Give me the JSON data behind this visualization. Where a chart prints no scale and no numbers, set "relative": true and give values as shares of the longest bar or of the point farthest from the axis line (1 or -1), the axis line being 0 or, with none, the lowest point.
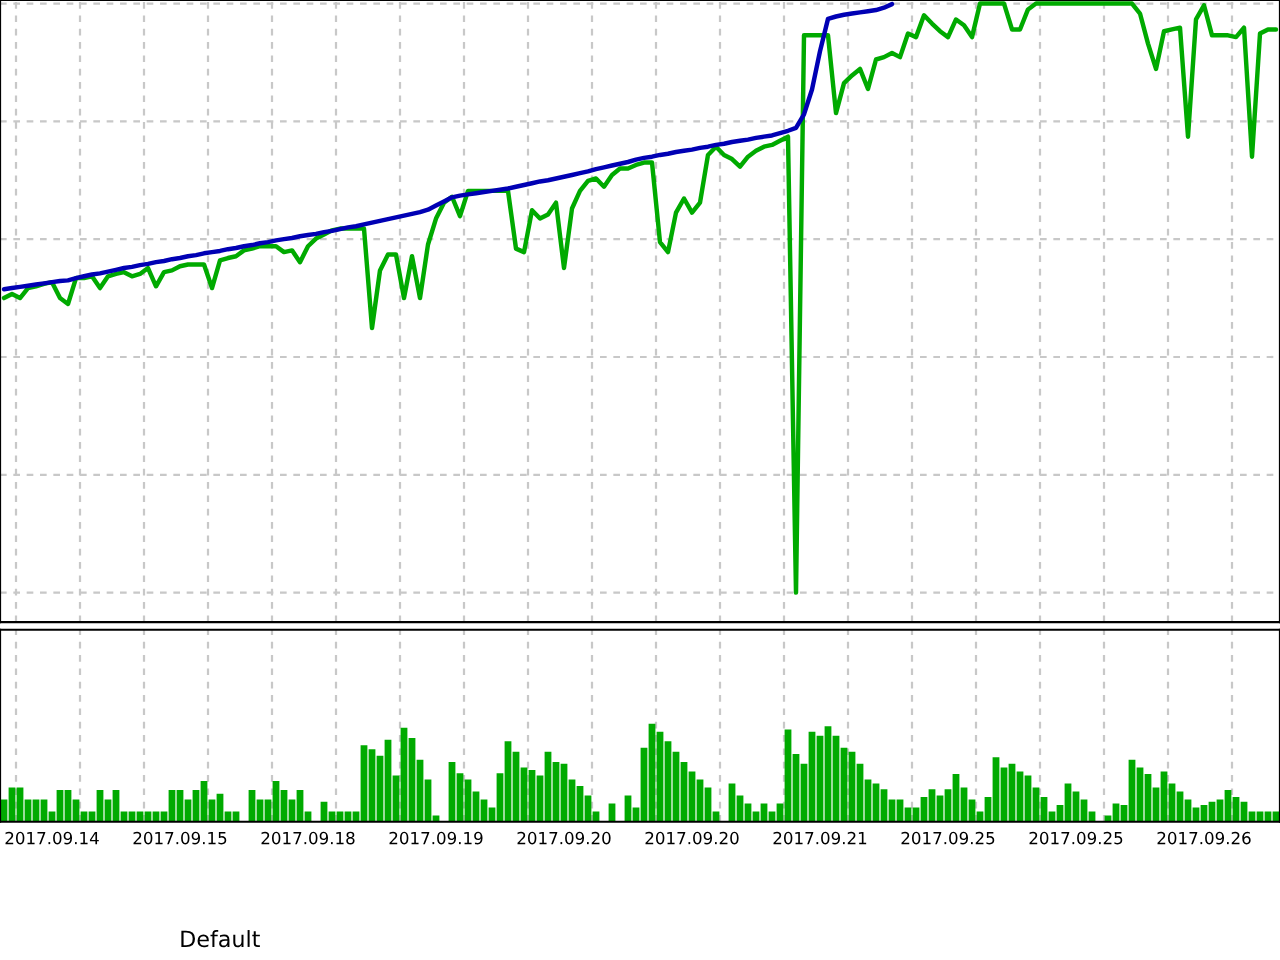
{
  "chart_data": [
    {
      "type": "line",
      "relative": true,
      "grid": true,
      "tick_labels": false,
      "categories": [
        null,
        null,
        null,
        null,
        null,
        null,
        null,
        null,
        null,
        null,
        null,
        null,
        null,
        null,
        null,
        null,
        null,
        null,
        null,
        null,
        null,
        null,
        null,
        null,
        null,
        null,
        null,
        null,
        null,
        null,
        null,
        null,
        null,
        null,
        null,
        null,
        null,
        null,
        null,
        null,
        null,
        null,
        null,
        null,
        null,
        null,
        null,
        null,
        null,
        null,
        null,
        null,
        null,
        null,
        null,
        null,
        null,
        null,
        null,
        null,
        null,
        null,
        null,
        null,
        null,
        null,
        null,
        null,
        null,
        null,
        null,
        null,
        null,
        null,
        null,
        null,
        null,
        null,
        null,
        null,
        null,
        null,
        null,
        null,
        null,
        null,
        null,
        null,
        null,
        null,
        null,
        null,
        null,
        null,
        null,
        null,
        null,
        null,
        null,
        null,
        null,
        null,
        null,
        null,
        null,
        null,
        null,
        null,
        null,
        null,
        null,
        null,
        null,
        null,
        null,
        null,
        null,
        null,
        null,
        null,
        null,
        null,
        null,
        null,
        null,
        null,
        null,
        null,
        null,
        null,
        null,
        null,
        null,
        null,
        null,
        null,
        null,
        null,
        null,
        null,
        null,
        null,
        null,
        null,
        null,
        null,
        null,
        null,
        null,
        null,
        null,
        null,
        null,
        null,
        null,
        null,
        null,
        null,
        null,
        null
      ],
      "series": [
        {
          "color": "#00aa00",
          "values": [
            0.5,
            0.507,
            0.5,
            0.517,
            0.52,
            0.524,
            0.527,
            0.5,
            0.49,
            0.534,
            0.534,
            0.537,
            0.517,
            0.537,
            0.541,
            0.544,
            0.537,
            0.541,
            0.551,
            0.52,
            0.544,
            0.547,
            0.554,
            0.557,
            0.557,
            0.557,
            0.517,
            0.564,
            0.568,
            0.571,
            0.581,
            0.584,
            0.588,
            0.588,
            0.588,
            0.578,
            0.581,
            0.561,
            0.588,
            0.601,
            0.608,
            0.615,
            0.618,
            0.618,
            0.618,
            0.618,
            0.449,
            0.547,
            0.574,
            0.574,
            0.5,
            0.571,
            0.5,
            0.591,
            0.635,
            0.662,
            0.672,
            0.639,
            0.682,
            0.682,
            0.682,
            0.682,
            0.682,
            0.682,
            0.584,
            0.578,
            0.649,
            0.635,
            0.642,
            0.662,
            0.551,
            0.652,
            0.682,
            0.699,
            0.703,
            0.689,
            0.709,
            0.72,
            0.72,
            0.726,
            0.73,
            0.73,
            0.595,
            0.578,
            0.645,
            0.669,
            0.645,
            0.662,
            0.743,
            0.757,
            0.743,
            0.736,
            0.723,
            0.74,
            0.75,
            0.757,
            0.76,
            0.767,
            0.774,
            0.0,
            0.946,
            0.946,
            0.946,
            0.946,
            0.814,
            0.865,
            0.878,
            0.889,
            0.855,
            0.905,
            0.909,
            0.916,
            0.909,
            0.949,
            0.943,
            0.98,
            0.966,
            0.953,
            0.943,
            0.973,
            0.963,
            0.943,
            1.0,
            1.0,
            1.0,
            1.0,
            0.956,
            0.956,
            0.99,
            1.0,
            1.0,
            1.0,
            1.0,
            1.0,
            1.0,
            1.0,
            1.0,
            1.0,
            1.0,
            1.0,
            1.0,
            1.0,
            0.983,
            0.932,
            0.889,
            0.953,
            0.956,
            0.959,
            0.774,
            0.973,
            0.997,
            0.946,
            0.946,
            0.946,
            0.943,
            0.959,
            0.74,
            0.949,
            0.956,
            0.956
          ]
        },
        {
          "color": "#0000b4",
          "values": [
            0.515,
            0.517,
            0.519,
            0.521,
            0.523,
            0.525,
            0.527,
            0.529,
            0.53,
            0.534,
            0.537,
            0.54,
            0.542,
            0.545,
            0.548,
            0.551,
            0.553,
            0.556,
            0.558,
            0.561,
            0.563,
            0.566,
            0.568,
            0.571,
            0.573,
            0.576,
            0.578,
            0.58,
            0.583,
            0.585,
            0.588,
            0.59,
            0.593,
            0.595,
            0.598,
            0.6,
            0.602,
            0.605,
            0.607,
            0.609,
            0.612,
            0.614,
            0.617,
            0.62,
            0.622,
            0.625,
            0.628,
            0.631,
            0.634,
            0.637,
            0.64,
            0.643,
            0.646,
            0.65,
            0.657,
            0.664,
            0.671,
            0.674,
            0.676,
            0.678,
            0.68,
            0.682,
            0.684,
            0.686,
            0.689,
            0.692,
            0.695,
            0.698,
            0.7,
            0.703,
            0.706,
            0.709,
            0.712,
            0.715,
            0.719,
            0.722,
            0.725,
            0.728,
            0.731,
            0.735,
            0.738,
            0.74,
            0.743,
            0.745,
            0.748,
            0.75,
            0.752,
            0.755,
            0.757,
            0.76,
            0.762,
            0.765,
            0.767,
            0.769,
            0.772,
            0.774,
            0.776,
            0.78,
            0.784,
            0.789,
            0.812,
            0.854,
            0.919,
            0.974,
            0.978,
            0.981,
            0.983,
            0.985,
            0.987,
            0.989,
            0.993,
            0.999,
            null,
            null,
            null,
            null,
            null,
            null,
            null,
            null,
            null,
            null,
            null,
            null,
            null,
            null,
            null,
            null,
            null,
            null,
            null,
            null,
            null,
            null,
            null,
            null,
            null,
            null,
            null,
            null,
            null,
            null,
            null,
            null,
            null,
            null,
            null,
            null,
            null,
            null,
            null,
            null,
            null,
            null,
            null,
            null,
            null,
            null,
            null,
            null
          ]
        }
      ]
    },
    {
      "type": "bar",
      "relative": true,
      "grid": "x",
      "tick_labels": "x",
      "categories": [
        null,
        null,
        null,
        null,
        null,
        null,
        "2017.09.14",
        null,
        null,
        null,
        null,
        null,
        null,
        null,
        null,
        null,
        null,
        null,
        null,
        null,
        null,
        null,
        "2017.09.15",
        null,
        null,
        null,
        null,
        null,
        null,
        null,
        null,
        null,
        null,
        null,
        null,
        null,
        null,
        null,
        "2017.09.18",
        null,
        null,
        null,
        null,
        null,
        null,
        null,
        null,
        null,
        null,
        null,
        null,
        null,
        null,
        null,
        "2017.09.19",
        null,
        null,
        null,
        null,
        null,
        null,
        null,
        null,
        null,
        null,
        null,
        null,
        null,
        null,
        null,
        "2017.09.20",
        null,
        null,
        null,
        null,
        null,
        null,
        null,
        null,
        null,
        null,
        null,
        null,
        null,
        null,
        null,
        "2017.09.20",
        null,
        null,
        null,
        null,
        null,
        null,
        null,
        null,
        null,
        null,
        null,
        null,
        null,
        null,
        null,
        "2017.09.21",
        null,
        null,
        null,
        null,
        null,
        null,
        null,
        null,
        null,
        null,
        null,
        null,
        null,
        null,
        null,
        "2017.09.25",
        null,
        null,
        null,
        null,
        null,
        null,
        null,
        null,
        null,
        null,
        null,
        null,
        null,
        null,
        null,
        "2017.09.25",
        null,
        null,
        null,
        null,
        null,
        null,
        null,
        null,
        null,
        null,
        null,
        null,
        null,
        null,
        null,
        "2017.09.26",
        null,
        null,
        null,
        null,
        null,
        null,
        null,
        null,
        null
      ],
      "annotations": [
        "Default"
      ],
      "series": [
        {
          "color": "#00aa00",
          "values": [
            0.228,
            0.35,
            0.35,
            0.228,
            0.228,
            0.228,
            0.106,
            0.325,
            0.325,
            0.228,
            0.106,
            0.106,
            0.325,
            0.228,
            0.325,
            0.106,
            0.106,
            0.106,
            0.106,
            0.106,
            0.106,
            0.325,
            0.325,
            0.228,
            0.325,
            0.415,
            0.228,
            0.285,
            0.106,
            0.106,
            0,
            0.325,
            0.228,
            0.228,
            0.415,
            0.325,
            0.228,
            0.325,
            0.106,
            0,
            0.203,
            0.106,
            0.106,
            0.106,
            0.106,
            0.78,
            0.74,
            0.675,
            0.837,
            0.472,
            0.959,
            0.854,
            0.634,
            0.431,
            0.065,
            0,
            0.61,
            0.496,
            0.431,
            0.309,
            0.228,
            0.146,
            0.496,
            0.821,
            0.715,
            0.553,
            0.528,
            0.472,
            0.715,
            0.61,
            0.593,
            0.431,
            0.366,
            0.268,
            0.106,
            0,
            0.187,
            0,
            0.268,
            0.146,
            0.756,
            1.0,
            0.919,
            0.821,
            0.715,
            0.61,
            0.512,
            0.431,
            0.35,
            0.106,
            0,
            0.39,
            0.268,
            0.187,
            0.106,
            0.187,
            0.106,
            0.187,
            0.943,
            0.691,
            0.593,
            0.919,
            0.878,
            0.976,
            0.878,
            0.756,
            0.715,
            0.593,
            0.431,
            0.39,
            0.333,
            0.228,
            0.228,
            0.146,
            0.146,
            0.252,
            0.333,
            0.268,
            0.333,
            0.488,
            0.35,
            0.228,
            0.106,
            0.252,
            0.659,
            0.553,
            0.593,
            0.512,
            0.472,
            0.35,
            0.252,
            0.106,
            0.171,
            0.39,
            0.309,
            0.228,
            0.106,
            0,
            0.065,
            0.187,
            0.171,
            0.634,
            0.553,
            0.488,
            0.35,
            0.512,
            0.39,
            0.309,
            0.228,
            0.146,
            0.171,
            0.203,
            0.228,
            0.325,
            0.252,
            0.203,
            0.106,
            0.106,
            0.106,
            0.106
          ]
        }
      ]
    }
  ]
}
